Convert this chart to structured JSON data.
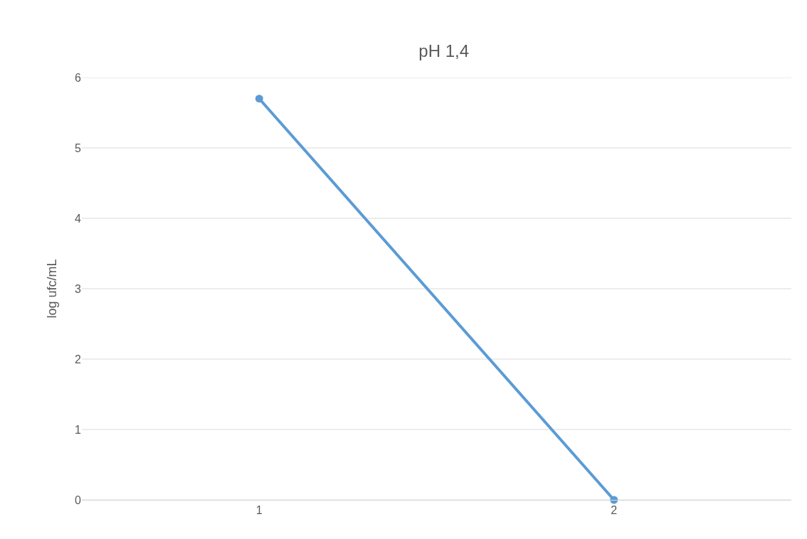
{
  "chart_data": {
    "type": "line",
    "title": "pH 1,4",
    "ylabel": "log ufc/mL",
    "categories": [
      "1",
      "2"
    ],
    "series": [
      {
        "color": "#5b9bd5",
        "values": [
          5.7,
          0
        ]
      }
    ],
    "ylim": [
      0,
      6
    ],
    "yticks": [
      0,
      1,
      2,
      3,
      4,
      5,
      6
    ],
    "grid": "y",
    "marker": "circle",
    "line_style": "solid"
  }
}
